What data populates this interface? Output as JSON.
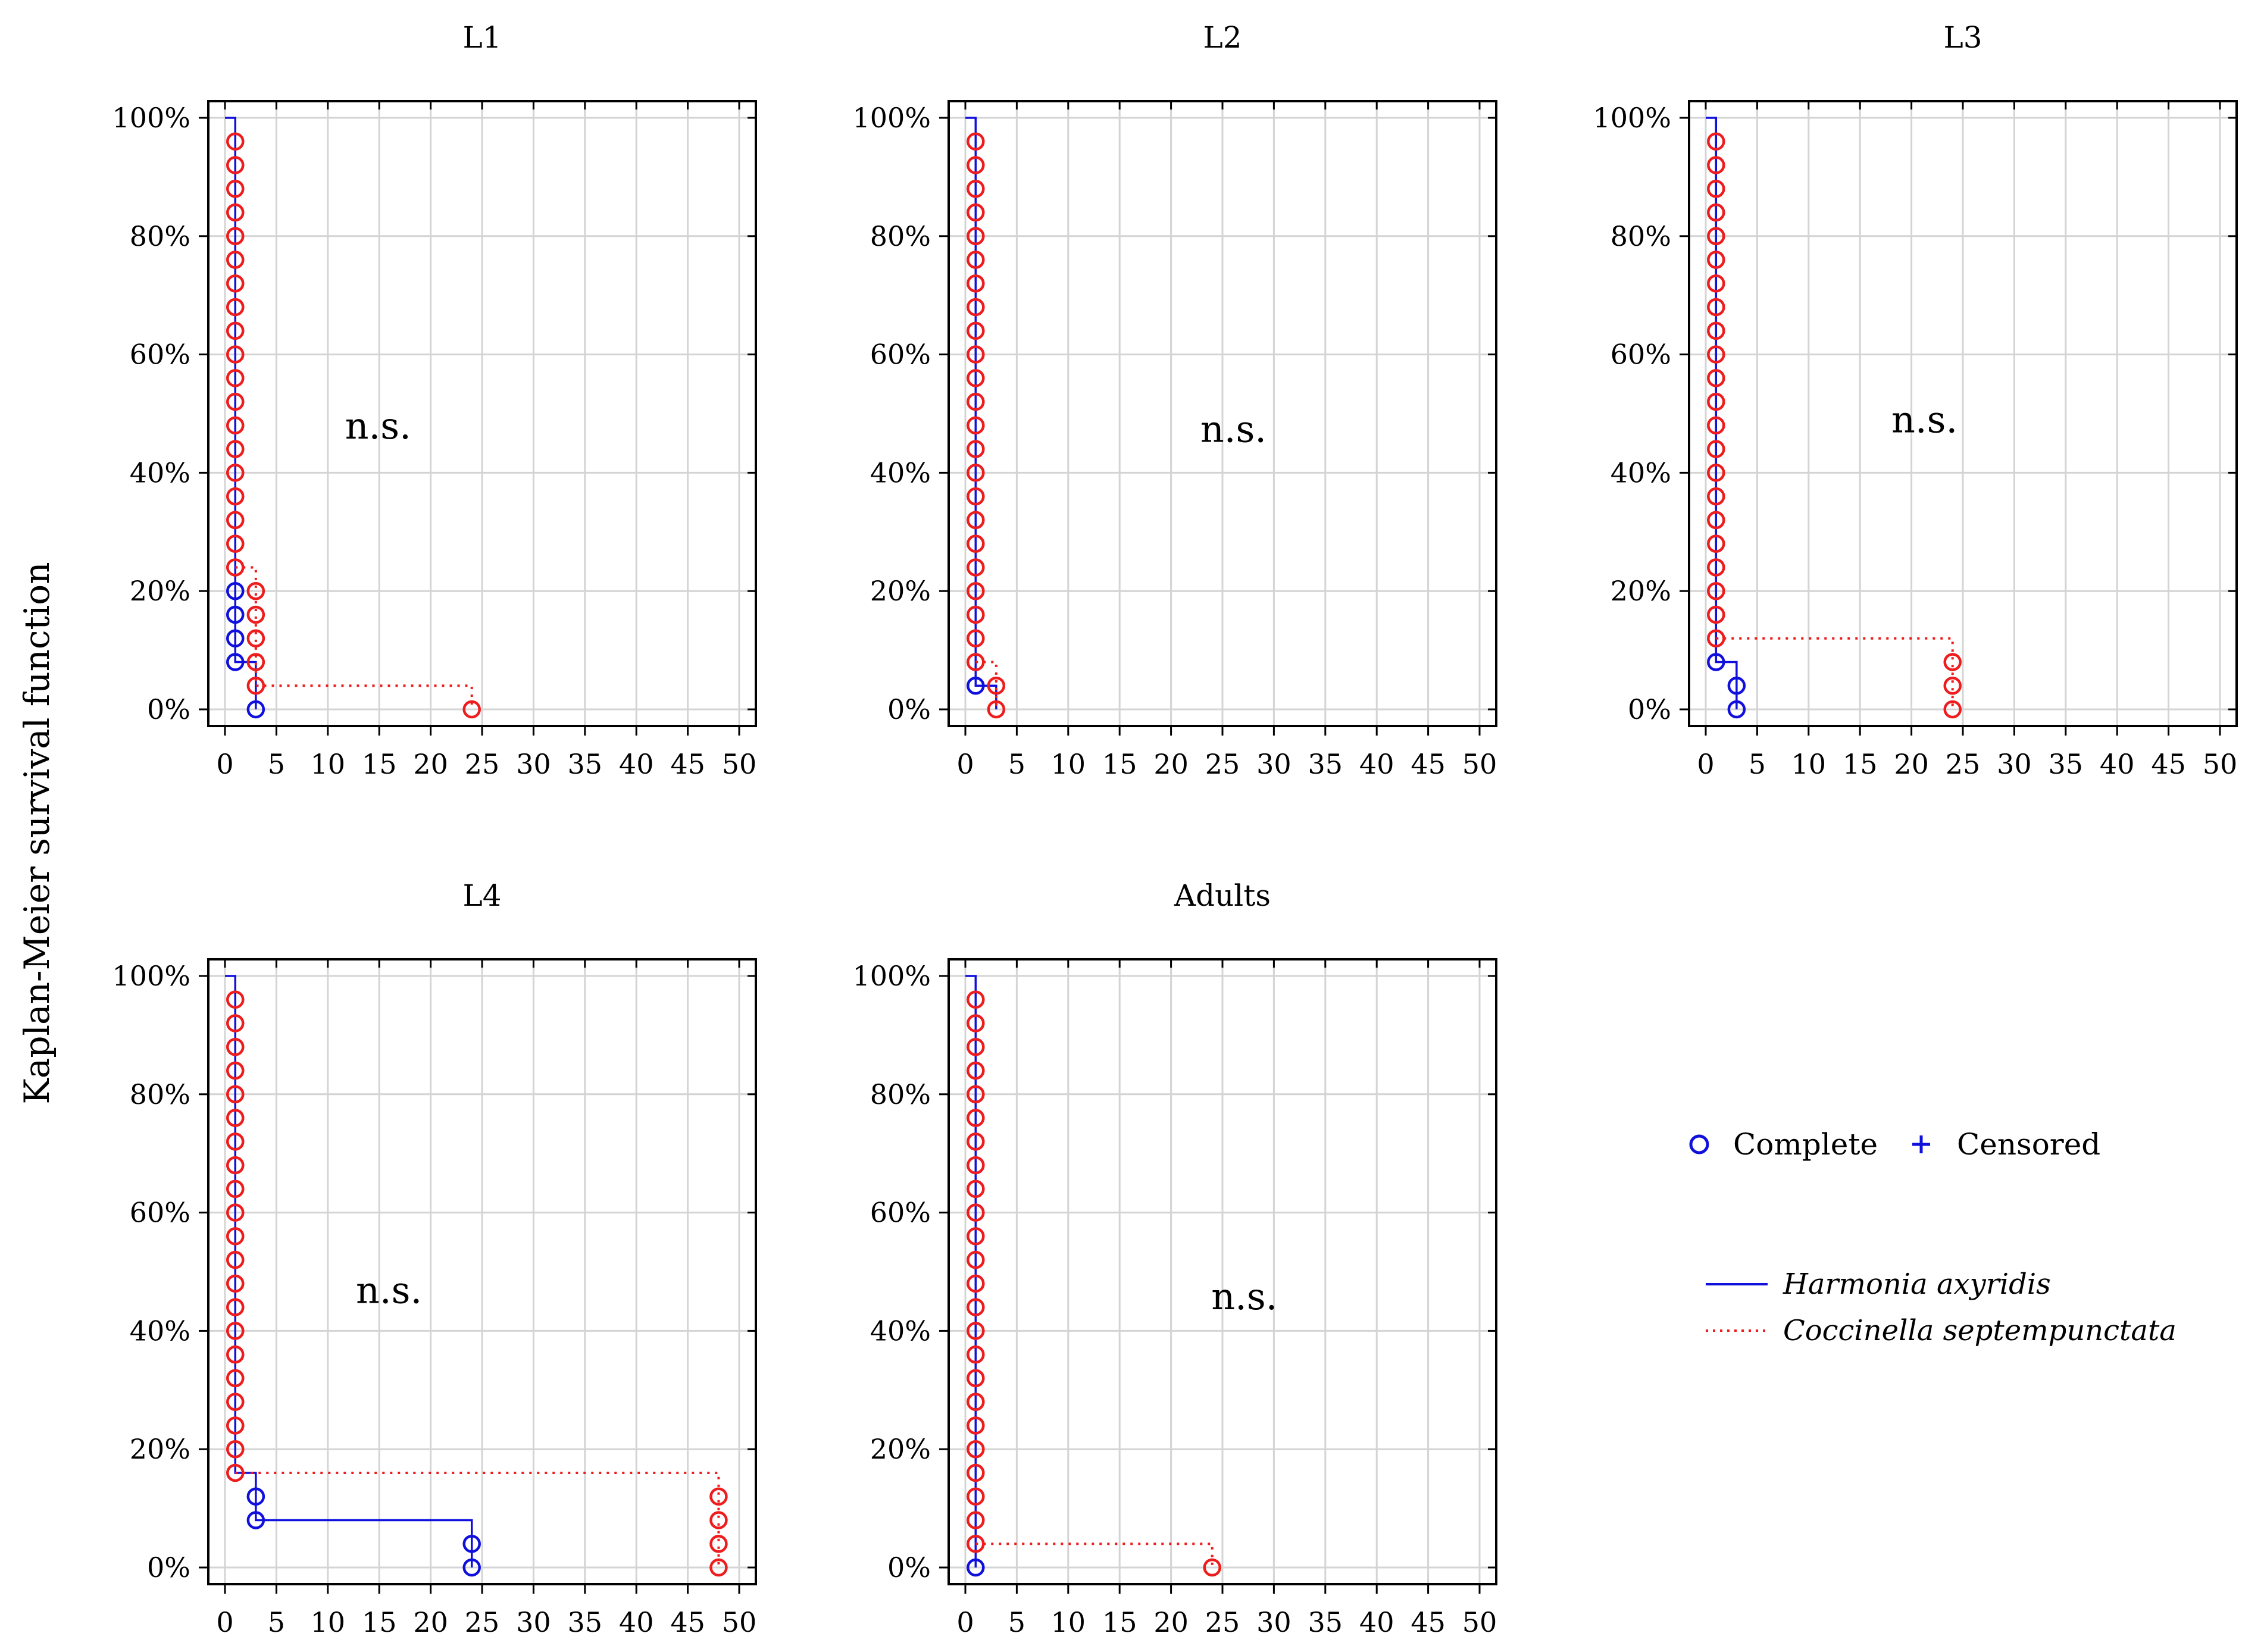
{
  "figure": {
    "ylabel": "Kaplan-Meier survival function"
  },
  "legend": {
    "complete_label": "Complete",
    "censored_label": "Censored",
    "series_labels": [
      "Harmonia axyridis",
      "Coccinella septempunctata"
    ]
  },
  "colors": {
    "harmonia": "#1010dd",
    "coccinella": "#ee1c1c",
    "grid": "#d4d4d4",
    "axis": "#000000"
  },
  "chart_data": [
    {
      "type": "line",
      "title": "L1",
      "annotation": "n.s.",
      "xlim": [
        0,
        50
      ],
      "ylim": [
        0,
        100
      ],
      "xticks": [
        0,
        5,
        10,
        15,
        20,
        25,
        30,
        35,
        40,
        45,
        50
      ],
      "yticks": [
        0,
        20,
        40,
        60,
        80,
        100
      ],
      "ytick_labels": [
        "0%",
        "20%",
        "40%",
        "60%",
        "80%",
        "100%"
      ],
      "series": [
        {
          "name": "Harmonia axyridis",
          "style": "solid",
          "steps": [
            [
              0,
              100
            ],
            [
              1,
              8
            ],
            [
              3,
              0
            ]
          ],
          "complete_points": [
            {
              "x": 1,
              "y": [
                20,
                16,
                12,
                8
              ]
            },
            {
              "x": 3,
              "y": [
                0
              ]
            }
          ]
        },
        {
          "name": "Coccinella septempunctata",
          "style": "dotted",
          "steps": [
            [
              1,
              24
            ],
            [
              3,
              4
            ],
            [
              24,
              0
            ]
          ],
          "complete_points": [
            {
              "x": 1,
              "y": [
                96,
                92,
                88,
                84,
                80,
                76,
                72,
                68,
                64,
                60,
                56,
                52,
                48,
                44,
                40,
                36,
                32,
                28,
                24
              ]
            },
            {
              "x": 3,
              "y": [
                20,
                16,
                12,
                8,
                4
              ]
            },
            {
              "x": 24,
              "y": [
                0
              ]
            }
          ]
        }
      ]
    },
    {
      "type": "line",
      "title": "L2",
      "annotation": "n.s.",
      "xlim": [
        0,
        50
      ],
      "ylim": [
        0,
        100
      ],
      "xticks": [
        0,
        5,
        10,
        15,
        20,
        25,
        30,
        35,
        40,
        45,
        50
      ],
      "yticks": [
        0,
        20,
        40,
        60,
        80,
        100
      ],
      "ytick_labels": [
        "0%",
        "20%",
        "40%",
        "60%",
        "80%",
        "100%"
      ],
      "series": [
        {
          "name": "Harmonia axyridis",
          "style": "solid",
          "steps": [
            [
              0,
              100
            ],
            [
              1,
              4
            ],
            [
              3,
              0
            ]
          ],
          "complete_points": [
            {
              "x": 1,
              "y": [
                4
              ]
            }
          ]
        },
        {
          "name": "Coccinella septempunctata",
          "style": "dotted",
          "steps": [
            [
              1,
              8
            ],
            [
              3,
              0
            ]
          ],
          "complete_points": [
            {
              "x": 1,
              "y": [
                96,
                92,
                88,
                84,
                80,
                76,
                72,
                68,
                64,
                60,
                56,
                52,
                48,
                44,
                40,
                36,
                32,
                28,
                24,
                20,
                16,
                12,
                8
              ]
            },
            {
              "x": 3,
              "y": [
                4,
                0
              ]
            }
          ]
        }
      ]
    },
    {
      "type": "line",
      "title": "L3",
      "annotation": "n.s.",
      "xlim": [
        0,
        50
      ],
      "ylim": [
        0,
        100
      ],
      "xticks": [
        0,
        5,
        10,
        15,
        20,
        25,
        30,
        35,
        40,
        45,
        50
      ],
      "yticks": [
        0,
        20,
        40,
        60,
        80,
        100
      ],
      "ytick_labels": [
        "0%",
        "20%",
        "40%",
        "60%",
        "80%",
        "100%"
      ],
      "series": [
        {
          "name": "Harmonia axyridis",
          "style": "solid",
          "steps": [
            [
              0,
              100
            ],
            [
              1,
              8
            ],
            [
              3,
              0
            ]
          ],
          "complete_points": [
            {
              "x": 1,
              "y": [
                8
              ]
            },
            {
              "x": 3,
              "y": [
                4,
                0
              ]
            }
          ]
        },
        {
          "name": "Coccinella septempunctata",
          "style": "dotted",
          "steps": [
            [
              1,
              12
            ],
            [
              24,
              0
            ]
          ],
          "complete_points": [
            {
              "x": 1,
              "y": [
                96,
                92,
                88,
                84,
                80,
                76,
                72,
                68,
                64,
                60,
                56,
                52,
                48,
                44,
                40,
                36,
                32,
                28,
                24,
                20,
                16,
                12
              ]
            },
            {
              "x": 24,
              "y": [
                8,
                4,
                0
              ]
            }
          ]
        }
      ]
    },
    {
      "type": "line",
      "title": "L4",
      "annotation": "n.s.",
      "xlim": [
        0,
        50
      ],
      "ylim": [
        0,
        100
      ],
      "xticks": [
        0,
        5,
        10,
        15,
        20,
        25,
        30,
        35,
        40,
        45,
        50
      ],
      "yticks": [
        0,
        20,
        40,
        60,
        80,
        100
      ],
      "ytick_labels": [
        "0%",
        "20%",
        "40%",
        "60%",
        "80%",
        "100%"
      ],
      "series": [
        {
          "name": "Harmonia axyridis",
          "style": "solid",
          "steps": [
            [
              0,
              100
            ],
            [
              1,
              16
            ],
            [
              3,
              8
            ],
            [
              24,
              0
            ]
          ],
          "complete_points": [
            {
              "x": 3,
              "y": [
                12,
                8
              ]
            },
            {
              "x": 24,
              "y": [
                4,
                0
              ]
            }
          ]
        },
        {
          "name": "Coccinella septempunctata",
          "style": "dotted",
          "steps": [
            [
              1,
              16
            ],
            [
              48,
              0
            ]
          ],
          "complete_points": [
            {
              "x": 1,
              "y": [
                96,
                92,
                88,
                84,
                80,
                76,
                72,
                68,
                64,
                60,
                56,
                52,
                48,
                44,
                40,
                36,
                32,
                28,
                24,
                20,
                16
              ]
            },
            {
              "x": 48,
              "y": [
                12,
                8,
                4,
                0
              ]
            }
          ]
        }
      ]
    },
    {
      "type": "line",
      "title": "Adults",
      "annotation": "n.s.",
      "xlim": [
        0,
        50
      ],
      "ylim": [
        0,
        100
      ],
      "xticks": [
        0,
        5,
        10,
        15,
        20,
        25,
        30,
        35,
        40,
        45,
        50
      ],
      "yticks": [
        0,
        20,
        40,
        60,
        80,
        100
      ],
      "ytick_labels": [
        "0%",
        "20%",
        "40%",
        "60%",
        "80%",
        "100%"
      ],
      "series": [
        {
          "name": "Harmonia axyridis",
          "style": "solid",
          "steps": [
            [
              0,
              100
            ],
            [
              1,
              0
            ]
          ],
          "complete_points": [
            {
              "x": 1,
              "y": [
                0
              ]
            }
          ]
        },
        {
          "name": "Coccinella septempunctata",
          "style": "dotted",
          "steps": [
            [
              1,
              4
            ],
            [
              24,
              0
            ]
          ],
          "complete_points": [
            {
              "x": 1,
              "y": [
                96,
                92,
                88,
                84,
                80,
                76,
                72,
                68,
                64,
                60,
                56,
                52,
                48,
                44,
                40,
                36,
                32,
                28,
                24,
                20,
                16,
                12,
                8,
                4
              ]
            },
            {
              "x": 24,
              "y": [
                0
              ]
            }
          ]
        }
      ]
    }
  ]
}
